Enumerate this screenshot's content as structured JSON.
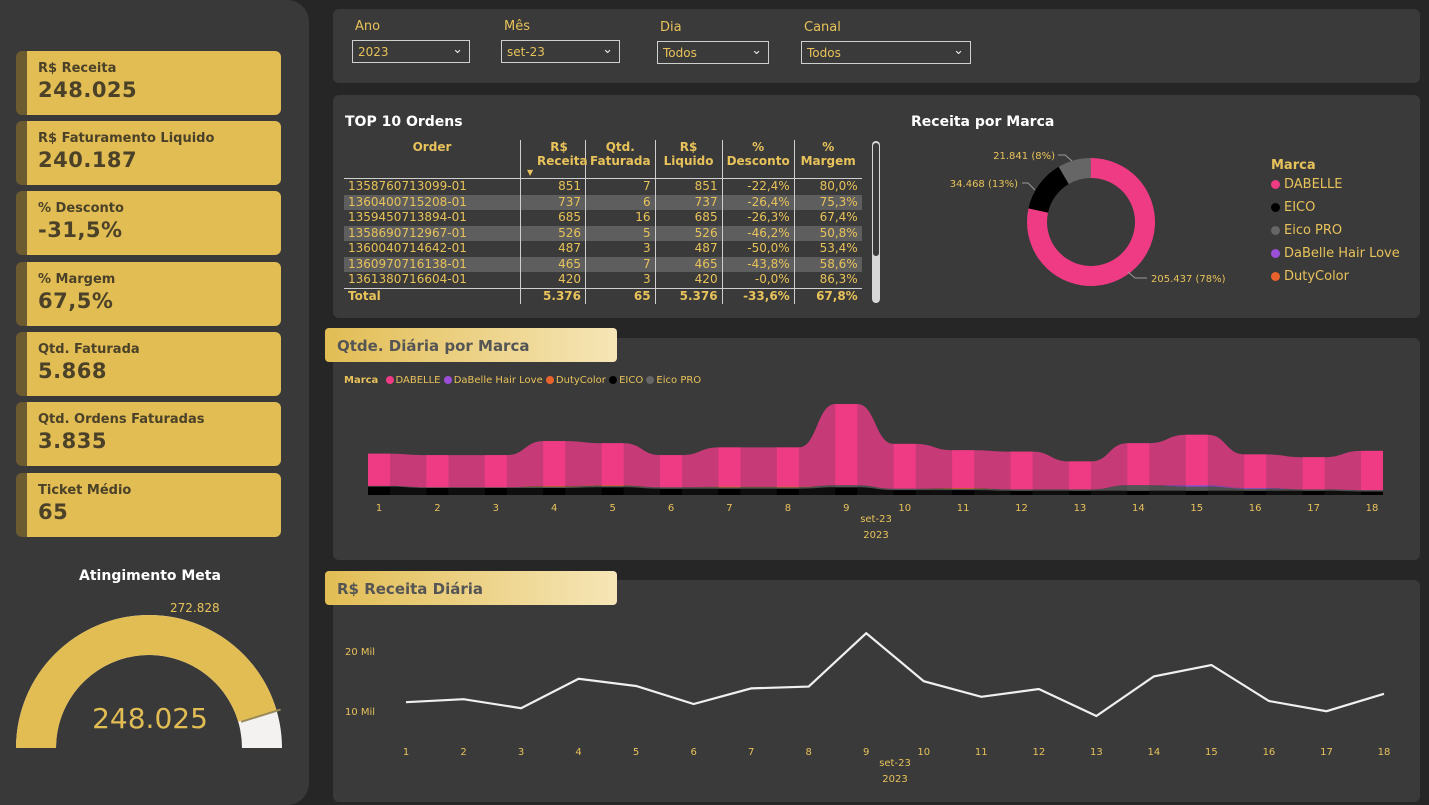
{
  "colors": {
    "gold": "#e2bd54",
    "pink": "#ef3b84",
    "bg": "#262626",
    "panel": "#3a3a3a"
  },
  "kpis": [
    {
      "label": "R$ Receita",
      "value": "248.025"
    },
    {
      "label": "R$ Faturamento Liquido",
      "value": "240.187"
    },
    {
      "label": "% Desconto",
      "value": "-31,5%"
    },
    {
      "label": "% Margem",
      "value": "67,5%"
    },
    {
      "label": "Qtd. Faturada",
      "value": "5.868"
    },
    {
      "label": "Qtd. Ordens Faturadas",
      "value": "3.835"
    },
    {
      "label": "Ticket Médio",
      "value": "65"
    }
  ],
  "gauge": {
    "title": "Atingimento Meta",
    "target": "272.828",
    "value_label": "248.025",
    "value": 248025,
    "max": 272828
  },
  "filters": [
    {
      "label": "Ano",
      "value": "2023"
    },
    {
      "label": "Mês",
      "value": "set-23"
    },
    {
      "label": "Dia",
      "value": "Todos"
    },
    {
      "label": "Canal",
      "value": "Todos"
    }
  ],
  "top_orders": {
    "title": "TOP 10 Ordens",
    "columns": [
      "Order",
      "R$ Receita",
      "Qtd. Faturada",
      "R$ Liquido",
      "% Desconto",
      "% Margem"
    ],
    "rows": [
      [
        "1358760713099-01",
        "851",
        "7",
        "851",
        "-22,4%",
        "80,0%"
      ],
      [
        "1360400715208-01",
        "737",
        "6",
        "737",
        "-26,4%",
        "75,3%"
      ],
      [
        "1359450713894-01",
        "685",
        "16",
        "685",
        "-26,3%",
        "67,4%"
      ],
      [
        "1358690712967-01",
        "526",
        "5",
        "526",
        "-46,2%",
        "50,8%"
      ],
      [
        "1360040714642-01",
        "487",
        "3",
        "487",
        "-50,0%",
        "53,4%"
      ],
      [
        "1360970716138-01",
        "465",
        "7",
        "465",
        "-43,8%",
        "58,6%"
      ],
      [
        "1361380716604-01",
        "420",
        "3",
        "420",
        "-0,0%",
        "86,3%"
      ]
    ],
    "total": [
      "Total",
      "5.376",
      "65",
      "5.376",
      "-33,6%",
      "67,8%"
    ]
  },
  "donut": {
    "title": "Receita por Marca",
    "legend_title": "Marca",
    "labels": {
      "dabelle": "205.437 (78%)",
      "eico": "34.468 (13%)",
      "eico_pro": "21.841 (8%)"
    },
    "legend": [
      {
        "name": "DABELLE",
        "color": "#ef3b84"
      },
      {
        "name": "EICO",
        "color": "#000000"
      },
      {
        "name": "Eico PRO",
        "color": "#666666"
      },
      {
        "name": "DaBelle Hair Love",
        "color": "#9b4fd6"
      },
      {
        "name": "DutyColor",
        "color": "#e8632c"
      }
    ]
  },
  "ribbon": {
    "title": "Qtde. Diária por Marca",
    "legend_label": "Marca",
    "legend": [
      {
        "name": "DABELLE",
        "color": "#ef3b84"
      },
      {
        "name": "DaBelle Hair Love",
        "color": "#9b4fd6"
      },
      {
        "name": "DutyColor",
        "color": "#e8632c"
      },
      {
        "name": "EICO",
        "color": "#000000"
      },
      {
        "name": "Eico PRO",
        "color": "#666666"
      }
    ],
    "month": "set-23",
    "year": "2023"
  },
  "line_chart": {
    "title": "R$ Receita Diária",
    "y_ticks": [
      "20 Mil",
      "10 Mil"
    ],
    "month": "set-23",
    "year": "2023"
  },
  "chart_data": [
    {
      "type": "pie",
      "title": "Receita por Marca",
      "categories": [
        "DABELLE",
        "EICO",
        "Eico PRO",
        "DaBelle Hair Love",
        "DutyColor"
      ],
      "values": [
        205437,
        34468,
        21841,
        150,
        100
      ]
    },
    {
      "type": "area",
      "title": "Qtde. Diária por Marca",
      "x": [
        1,
        2,
        3,
        4,
        5,
        6,
        7,
        8,
        9,
        10,
        11,
        12,
        13,
        14,
        15,
        16,
        17,
        18
      ],
      "series": [
        {
          "name": "DABELLE",
          "values": [
            230,
            230,
            230,
            320,
            300,
            230,
            280,
            280,
            580,
            320,
            270,
            270,
            200,
            300,
            360,
            240,
            230,
            280
          ]
        },
        {
          "name": "EICO",
          "values": [
            60,
            50,
            50,
            50,
            55,
            45,
            45,
            45,
            55,
            35,
            35,
            30,
            30,
            30,
            30,
            30,
            30,
            25
          ]
        },
        {
          "name": "Eico PRO",
          "values": [
            5,
            5,
            5,
            10,
            10,
            10,
            10,
            10,
            15,
            10,
            10,
            10,
            10,
            40,
            30,
            15,
            10,
            10
          ]
        },
        {
          "name": "DaBelle Hair Love",
          "values": [
            0,
            0,
            0,
            0,
            0,
            0,
            0,
            0,
            0,
            0,
            0,
            0,
            0,
            0,
            10,
            5,
            0,
            0
          ]
        },
        {
          "name": "DutyColor",
          "values": [
            0,
            0,
            0,
            5,
            5,
            0,
            5,
            5,
            0,
            0,
            5,
            0,
            0,
            0,
            0,
            0,
            0,
            0
          ]
        }
      ]
    },
    {
      "type": "line",
      "title": "R$ Receita Diária",
      "x": [
        1,
        2,
        3,
        4,
        5,
        6,
        7,
        8,
        9,
        10,
        11,
        12,
        13,
        14,
        15,
        16,
        17,
        18
      ],
      "series": [
        {
          "name": "R$ Receita",
          "values": [
            11800,
            12300,
            10800,
            15700,
            14500,
            11500,
            14100,
            14400,
            23300,
            15300,
            12700,
            14000,
            9500,
            16100,
            18000,
            12000,
            10300,
            13200
          ]
        }
      ],
      "ylim": [
        5000,
        25000
      ]
    }
  ]
}
